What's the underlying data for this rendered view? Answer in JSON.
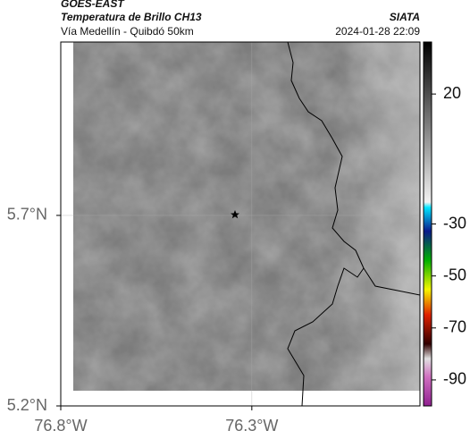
{
  "header": {
    "source": "GOES-EAST",
    "title": "Temperatura de Brillo CH13",
    "org": "SIATA",
    "subtitle": "Vía Medellín - Quibdó 50km",
    "timestamp": "2024-01-28 22:09"
  },
  "map": {
    "xlim": [
      -76.8,
      -75.86
    ],
    "ylim": [
      5.2,
      6.155
    ],
    "xticks": [
      {
        "value": -76.8,
        "label": "76.8°W"
      },
      {
        "value": -76.3,
        "label": "76.3°W"
      }
    ],
    "yticks": [
      {
        "value": 5.2,
        "label": "5.2°N"
      },
      {
        "value": 5.7,
        "label": "5.7°N"
      }
    ],
    "grid": true
  },
  "colorbar": {
    "lim": [
      40,
      -100
    ],
    "ticks": [
      20,
      -30,
      -50,
      -70,
      -90
    ]
  }
}
